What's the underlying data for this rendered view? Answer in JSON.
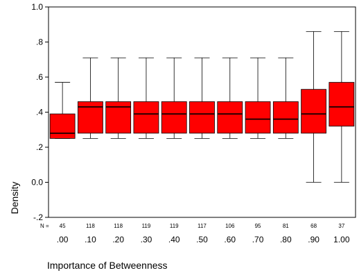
{
  "chart_data": {
    "type": "box",
    "xlabel": "Importance of Betweenness",
    "ylabel": "Density",
    "ylim": [
      -0.2,
      1.0
    ],
    "yticks": [
      {
        "value": 1.0,
        "label": "1.0"
      },
      {
        "value": 0.8,
        "label": ".8"
      },
      {
        "value": 0.6,
        "label": ".6"
      },
      {
        "value": 0.4,
        "label": ".4"
      },
      {
        "value": 0.2,
        "label": ".2"
      },
      {
        "value": 0.0,
        "label": "0.0"
      },
      {
        "value": -0.2,
        "label": "-.2"
      }
    ],
    "n_prefix": "N =",
    "box_color": "#ff0000",
    "categories": [
      ".00",
      ".10",
      ".20",
      ".30",
      ".40",
      ".50",
      ".60",
      ".70",
      ".80",
      ".90",
      "1.00"
    ],
    "n": [
      "45",
      "118",
      "118",
      "119",
      "119",
      "117",
      "106",
      "95",
      "81",
      "68",
      "37"
    ],
    "boxes": [
      {
        "min": 0.25,
        "q1": 0.25,
        "median": 0.28,
        "q3": 0.39,
        "max": 0.57
      },
      {
        "min": 0.25,
        "q1": 0.28,
        "median": 0.43,
        "q3": 0.46,
        "max": 0.71
      },
      {
        "min": 0.25,
        "q1": 0.28,
        "median": 0.43,
        "q3": 0.46,
        "max": 0.71
      },
      {
        "min": 0.25,
        "q1": 0.28,
        "median": 0.39,
        "q3": 0.46,
        "max": 0.71
      },
      {
        "min": 0.25,
        "q1": 0.28,
        "median": 0.39,
        "q3": 0.46,
        "max": 0.71
      },
      {
        "min": 0.25,
        "q1": 0.28,
        "median": 0.39,
        "q3": 0.46,
        "max": 0.71
      },
      {
        "min": 0.25,
        "q1": 0.28,
        "median": 0.39,
        "q3": 0.46,
        "max": 0.71
      },
      {
        "min": 0.25,
        "q1": 0.28,
        "median": 0.36,
        "q3": 0.46,
        "max": 0.71
      },
      {
        "min": 0.25,
        "q1": 0.28,
        "median": 0.36,
        "q3": 0.46,
        "max": 0.71
      },
      {
        "min": 0.0,
        "q1": 0.28,
        "median": 0.39,
        "q3": 0.53,
        "max": 0.86
      },
      {
        "min": 0.0,
        "q1": 0.32,
        "median": 0.43,
        "q3": 0.57,
        "max": 0.86
      }
    ]
  }
}
